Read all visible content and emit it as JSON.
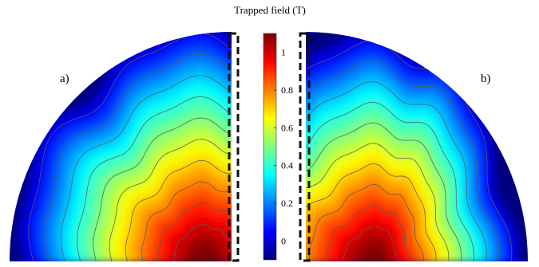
{
  "figure": {
    "title": "Trapped field  (T)",
    "panel_a_label": "a)",
    "panel_b_label": "b)"
  },
  "colorbar": {
    "ticks": [
      {
        "value": 0,
        "label": "0"
      },
      {
        "value": 0.2,
        "label": "0.2"
      },
      {
        "value": 0.4,
        "label": "0.4"
      },
      {
        "value": 0.6,
        "label": "0.6"
      },
      {
        "value": 0.8,
        "label": "0.8"
      },
      {
        "value": 1,
        "label": "1"
      }
    ],
    "range": [
      -0.1,
      1.1
    ],
    "colormap": "jet"
  },
  "colors": {
    "contour_line": "#5a5a5a",
    "dashed_box": "#111111",
    "map_outer": "#00007f",
    "map_peak": "#7f0000"
  }
}
